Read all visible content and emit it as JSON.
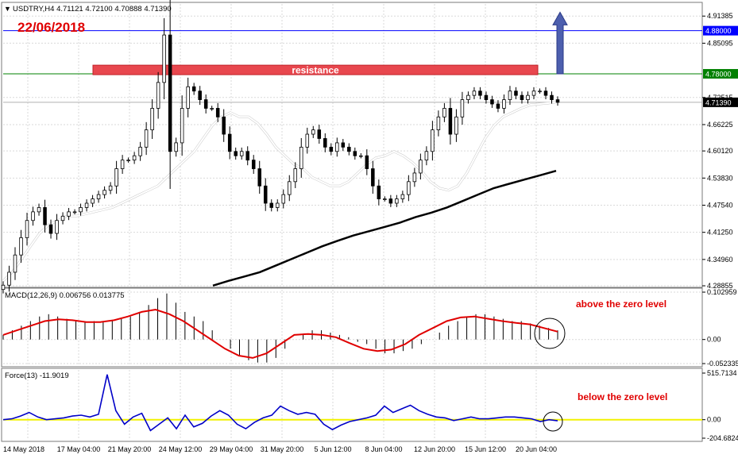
{
  "header": {
    "symbol_line": "USDTRY,H4  4.71121 4.72100 4.70888 4.71390",
    "date_label": "22/06/2018"
  },
  "colors": {
    "background": "#ffffff",
    "grid": "#d9d9d9",
    "candle": "#000000",
    "ma_fast": "#ffffff",
    "ma_slow": "#000000",
    "resistance_fill": "#e8474e",
    "level_blue": "#0000ff",
    "level_green": "#008000",
    "arrow": "#4d5fae",
    "macd_signal": "#e00000",
    "force_line": "#0000c8",
    "force_zero": "#f2f200",
    "annotation_red": "#e00000"
  },
  "chart_data": [
    {
      "type": "candlestick",
      "title": "USDTRY,H4",
      "ohlc_last": {
        "open": 4.71121,
        "high": 4.721,
        "low": 4.70888,
        "close": 4.7139
      },
      "x_tick_labels": [
        "14 May 2018",
        "17 May 04:00",
        "21 May 20:00",
        "24 May 12:00",
        "29 May 04:00",
        "31 May 20:00",
        "5 Jun 12:00",
        "8 Jun 04:00",
        "12 Jun 20:00",
        "15 Jun 12:00",
        "20 Jun 04:00"
      ],
      "y_tick_labels": [
        "4.91385",
        "4.85095",
        "4.72515",
        "4.66225",
        "4.60120",
        "4.53830",
        "4.47540",
        "4.41250",
        "4.34960",
        "4.28855"
      ],
      "ylim": [
        4.2886,
        4.9419
      ],
      "resistance_zone": {
        "label": "resistance",
        "low": 4.778,
        "high": 4.8
      },
      "levels": [
        {
          "value": 4.88,
          "label": "4.88000",
          "color": "blue"
        },
        {
          "value": 4.78,
          "label": "4.78000",
          "color": "green"
        }
      ],
      "current_price_label": "4.71390",
      "target_arrow": {
        "from": 4.78,
        "to": 4.9227
      },
      "close_series": [
        4.29,
        4.32,
        4.36,
        4.4,
        4.44,
        4.46,
        4.47,
        4.43,
        4.41,
        4.44,
        4.45,
        4.46,
        4.46,
        4.47,
        4.48,
        4.49,
        4.5,
        4.51,
        4.52,
        4.56,
        4.58,
        4.58,
        4.59,
        4.61,
        4.65,
        4.7,
        4.76,
        4.87,
        4.6,
        4.62,
        4.7,
        4.75,
        4.74,
        4.72,
        4.7,
        4.7,
        4.68,
        4.64,
        4.6,
        4.59,
        4.6,
        4.58,
        4.56,
        4.52,
        4.48,
        4.47,
        4.48,
        4.5,
        4.53,
        4.56,
        4.61,
        4.64,
        4.65,
        4.63,
        4.61,
        4.6,
        4.62,
        4.61,
        4.6,
        4.59,
        4.59,
        4.56,
        4.52,
        4.49,
        4.49,
        4.48,
        4.49,
        4.5,
        4.53,
        4.55,
        4.58,
        4.6,
        4.65,
        4.68,
        4.7,
        4.64,
        4.68,
        4.72,
        4.73,
        4.74,
        4.73,
        4.72,
        4.71,
        4.7,
        4.72,
        4.74,
        4.73,
        4.72,
        4.73,
        4.74,
        4.74,
        4.73,
        4.72,
        4.714
      ],
      "ma_fast_series": [
        4.3,
        4.32,
        4.35,
        4.38,
        4.41,
        4.43,
        4.44,
        4.45,
        4.45,
        4.455,
        4.46,
        4.465,
        4.47,
        4.48,
        4.49,
        4.5,
        4.51,
        4.52,
        4.54,
        4.56,
        4.58,
        4.6,
        4.63,
        4.66,
        4.68,
        4.69,
        4.68,
        4.68,
        4.665,
        4.64,
        4.61,
        4.59,
        4.57,
        4.56,
        4.54,
        4.53,
        4.52,
        4.52,
        4.53,
        4.55,
        4.57,
        4.585,
        4.59,
        4.6,
        4.59,
        4.575,
        4.555,
        4.53,
        4.515,
        4.51,
        4.52,
        4.55,
        4.59,
        4.63,
        4.66,
        4.68,
        4.69,
        4.7,
        4.708,
        4.71,
        4.712,
        4.715
      ],
      "ma_slow_series": [
        4.289,
        4.3,
        4.31,
        4.32,
        4.335,
        4.35,
        4.365,
        4.38,
        4.393,
        4.405,
        4.415,
        4.425,
        4.435,
        4.448,
        4.458,
        4.47,
        4.485,
        4.5,
        4.515,
        4.525,
        4.535,
        4.545,
        4.555
      ]
    },
    {
      "type": "bar",
      "title": "MACD(12,26,9) 0.006756 0.013775",
      "y_tick_labels": [
        "0.102959",
        "0.00",
        "-0.052335"
      ],
      "ylim": [
        -0.0523,
        0.103
      ],
      "histogram": [
        0.01,
        0.02,
        0.03,
        0.04,
        0.05,
        0.055,
        0.05,
        0.045,
        0.04,
        0.038,
        0.04,
        0.04,
        0.042,
        0.045,
        0.05,
        0.06,
        0.075,
        0.09,
        0.1,
        0.08,
        0.06,
        0.05,
        0.04,
        0.02,
        0.0,
        -0.02,
        -0.035,
        -0.045,
        -0.05,
        -0.05,
        -0.04,
        -0.02,
        0.0,
        0.01,
        0.02,
        0.02,
        0.015,
        0.01,
        0.005,
        -0.005,
        -0.01,
        -0.02,
        -0.03,
        -0.03,
        -0.025,
        -0.02,
        -0.01,
        0.0,
        0.015,
        0.03,
        0.04,
        0.05,
        0.055,
        0.055,
        0.05,
        0.045,
        0.04,
        0.04,
        0.035,
        0.03,
        0.025,
        0.02
      ],
      "signal": [
        0.01,
        0.02,
        0.03,
        0.04,
        0.044,
        0.042,
        0.038,
        0.038,
        0.042,
        0.05,
        0.06,
        0.065,
        0.055,
        0.04,
        0.02,
        0.0,
        -0.02,
        -0.035,
        -0.04,
        -0.03,
        -0.01,
        0.01,
        0.012,
        0.01,
        0.005,
        -0.008,
        -0.02,
        -0.025,
        -0.022,
        -0.01,
        0.01,
        0.025,
        0.04,
        0.048,
        0.05,
        0.045,
        0.04,
        0.036,
        0.033,
        0.025,
        0.017
      ],
      "annotation": "above the zero level"
    },
    {
      "type": "line",
      "title": "Force(13) -11.9019",
      "y_tick_labels": [
        "515.7134",
        "0.00",
        "-204.6824"
      ],
      "ylim": [
        -204.68,
        515.71
      ],
      "series": [
        0,
        10,
        40,
        80,
        30,
        0,
        10,
        20,
        40,
        50,
        30,
        60,
        500,
        100,
        -50,
        30,
        70,
        -120,
        -50,
        20,
        -100,
        50,
        -80,
        -40,
        40,
        100,
        50,
        -50,
        -100,
        -30,
        20,
        50,
        150,
        100,
        60,
        80,
        60,
        -50,
        -110,
        -60,
        -20,
        0,
        20,
        50,
        150,
        80,
        120,
        160,
        100,
        60,
        30,
        20,
        -10,
        10,
        30,
        10,
        10,
        20,
        30,
        30,
        20,
        10,
        -20,
        0,
        -11.9
      ],
      "annotation": "below the zero level"
    }
  ]
}
